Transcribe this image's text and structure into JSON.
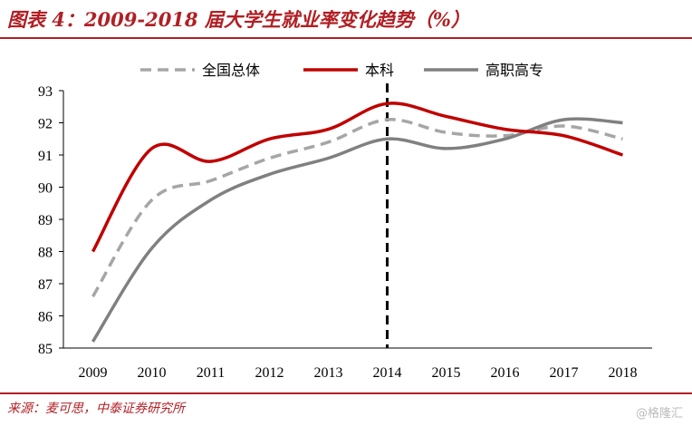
{
  "title": "图表 4：2009-2018 届大学生就业率变化趋势（%）",
  "source": "来源：麦可思，中泰证券研究所",
  "watermark": "@格隆汇",
  "colors": {
    "accent": "#b11f24",
    "total": "#a6a6a6",
    "benke": "#c00000",
    "zhuanke": "#808080"
  },
  "chart_data": {
    "type": "line",
    "title": "",
    "xlabel": "",
    "ylabel": "",
    "categories": [
      "2009",
      "2010",
      "2011",
      "2012",
      "2013",
      "2014",
      "2015",
      "2016",
      "2017",
      "2018"
    ],
    "ylim": [
      85,
      93
    ],
    "yticks": [
      "85",
      "86",
      "87",
      "88",
      "89",
      "90",
      "91",
      "92",
      "93"
    ],
    "series": [
      {
        "name": "全国总体",
        "style": "dashed",
        "color": "#a6a6a6",
        "values": [
          86.6,
          89.6,
          90.2,
          90.9,
          91.4,
          92.1,
          91.7,
          91.6,
          91.9,
          91.5
        ]
      },
      {
        "name": "本科",
        "style": "solid",
        "color": "#c00000",
        "values": [
          88.0,
          91.2,
          90.8,
          91.5,
          91.8,
          92.6,
          92.2,
          91.8,
          91.6,
          91.0
        ]
      },
      {
        "name": "高职高专",
        "style": "solid",
        "color": "#808080",
        "values": [
          85.2,
          88.1,
          89.6,
          90.4,
          90.9,
          91.5,
          91.2,
          91.5,
          92.1,
          92.0
        ]
      }
    ],
    "marker": {
      "category": "2014",
      "style": "dashed-vertical"
    },
    "grid": false,
    "legend_position": "top"
  }
}
